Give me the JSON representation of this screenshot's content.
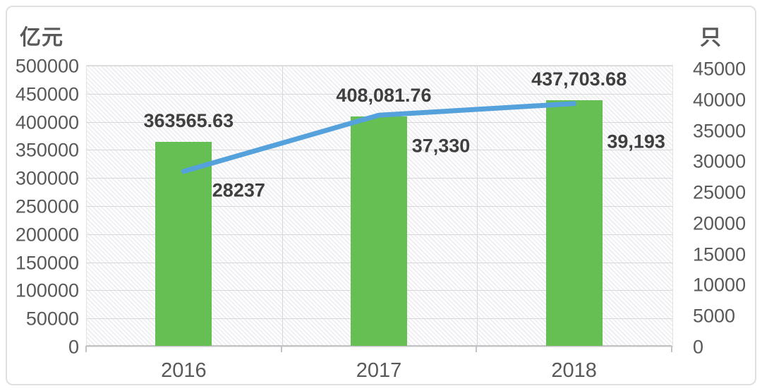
{
  "chart_data": {
    "type": "bar",
    "subtype": "bar-line-combo",
    "categories": [
      "2016",
      "2017",
      "2018"
    ],
    "series": [
      {
        "name": "bar-series",
        "type": "bar",
        "axis": "left",
        "color": "#66bf52",
        "values": [
          363565.63,
          408081.76,
          437703.68
        ],
        "point_labels": [
          "363565.63",
          "408,081.76",
          "437,703.68"
        ]
      },
      {
        "name": "line-series",
        "type": "line",
        "axis": "right",
        "color": "#55a1dc",
        "values": [
          28237,
          37330,
          39193
        ],
        "point_labels": [
          "28237",
          "37,330",
          "39,193"
        ]
      }
    ],
    "left_axis": {
      "title": "亿元",
      "min": 0,
      "max": 500000,
      "tick_step": 50000,
      "tick_labels": [
        "500000",
        "450000",
        "400000",
        "350000",
        "300000",
        "250000",
        "200000",
        "150000",
        "100000",
        "50000",
        "0"
      ]
    },
    "right_axis": {
      "title": "只",
      "min": 0,
      "max": 45000,
      "tick_step": 5000,
      "tick_labels": [
        "45000",
        "40000",
        "35000",
        "30000",
        "25000",
        "20000",
        "15000",
        "10000",
        "5000",
        "0"
      ]
    },
    "x_axis": {
      "tick_labels": [
        "2016",
        "2017",
        "2018"
      ]
    },
    "grid": {
      "horizontal": true,
      "vertical_category_dividers": true
    },
    "legend": "none",
    "plot_background": "diagonal-hatch",
    "colors": {
      "bar": "#66bf52",
      "line": "#55a1dc",
      "grid": "#d7d7da",
      "text": "#595959",
      "data_label_text": "#3f3f3f"
    }
  }
}
